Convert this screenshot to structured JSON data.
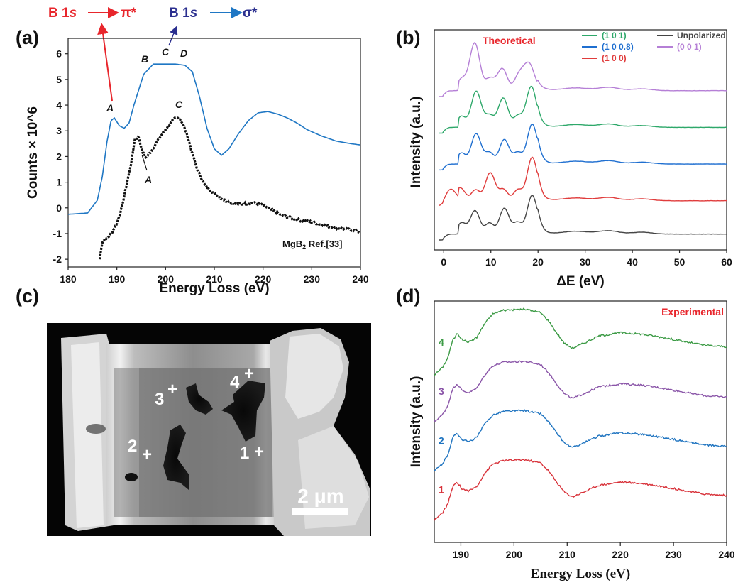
{
  "panel_labels": {
    "a": "(a)",
    "b": "(b)",
    "c": "(c)",
    "d": "(d)"
  },
  "chart_data": [
    {
      "id": "a",
      "type": "line",
      "xlabel": "Energy Loss (eV)",
      "ylabel": "Counts × 10^6",
      "xlim": [
        180,
        240
      ],
      "ylim": [
        -2.3,
        6.6
      ],
      "xticks": [
        180,
        190,
        200,
        210,
        220,
        230,
        240
      ],
      "yticks": [
        -2,
        -1,
        0,
        1,
        2,
        3,
        4,
        5,
        6
      ],
      "annotations": {
        "pi_label_b": "B 1",
        "pi_label_s": "s",
        "pi_label_target": "π*",
        "sigma_label_b": "B 1",
        "sigma_label_s": "s",
        "sigma_label_target": "σ*",
        "blue_A": "A",
        "blue_B": "B",
        "blue_C": "C",
        "blue_D": "D",
        "black_A": "A",
        "black_C": "C",
        "ref_main": "MgB",
        "ref_sub": "2",
        "ref_rest": " Ref.[33]"
      },
      "series": [
        {
          "color": "#1f77c4",
          "x": [
            180,
            184,
            186,
            187,
            188,
            188.8,
            189.5,
            190.5,
            191.5,
            192.5,
            193.5,
            194.5,
            195.5,
            196.5,
            197.5,
            198.5,
            200,
            202,
            204,
            205.5,
            207,
            208.5,
            210,
            211.5,
            213,
            215,
            217,
            219,
            221,
            223,
            225,
            227,
            229,
            232,
            235,
            238,
            240
          ],
          "y": [
            -0.25,
            -0.2,
            0.3,
            1.2,
            2.6,
            3.4,
            3.5,
            3.2,
            3.1,
            3.3,
            4.0,
            4.6,
            5.2,
            5.4,
            5.6,
            5.6,
            5.6,
            5.6,
            5.55,
            5.3,
            4.3,
            3.1,
            2.3,
            2.05,
            2.3,
            2.9,
            3.4,
            3.7,
            3.75,
            3.65,
            3.5,
            3.3,
            3.05,
            2.8,
            2.6,
            2.5,
            2.45
          ]
        },
        {
          "color": "#111111",
          "dashed": true,
          "x": [
            186.5,
            187,
            188,
            189,
            190,
            191,
            192,
            193,
            193.7,
            194.5,
            195.2,
            196,
            197,
            198,
            199,
            200,
            201,
            202,
            202.8,
            203.5,
            204.5,
            205.5,
            206.5,
            208,
            210,
            212,
            214,
            216,
            218,
            220,
            222,
            224,
            226,
            228,
            230,
            232,
            234,
            236,
            238,
            240
          ],
          "y": [
            -2.0,
            -1.3,
            -1.2,
            -0.95,
            -0.6,
            0.0,
            0.9,
            1.8,
            2.7,
            2.75,
            2.2,
            1.95,
            2.2,
            2.5,
            2.8,
            3.05,
            3.3,
            3.5,
            3.5,
            3.3,
            2.8,
            2.1,
            1.5,
            0.9,
            0.55,
            0.3,
            0.15,
            0.15,
            0.2,
            0.1,
            -0.1,
            -0.3,
            -0.4,
            -0.5,
            -0.55,
            -0.65,
            -0.75,
            -0.8,
            -0.85,
            -0.95
          ]
        }
      ]
    },
    {
      "id": "b",
      "type": "line",
      "xlabel": "ΔE (eV)",
      "ylabel": "Intensity (a.u.)",
      "title": "Theoretical",
      "xlim": [
        -2,
        60
      ],
      "xticks": [
        0,
        10,
        20,
        30,
        40,
        50,
        60
      ],
      "legend_placement": "top-right",
      "series": [
        {
          "name": "(0 0 1)",
          "color": "#b57fd6",
          "offset": 4.3,
          "peaks": [
            [
              6.5,
              1.6
            ],
            [
              12,
              0.55
            ],
            [
              17.5,
              0.95
            ]
          ]
        },
        {
          "name": "(1 0 1)",
          "color": "#2ea86a",
          "offset": 3.2,
          "peaks": [
            [
              7,
              1.1
            ],
            [
              12.5,
              0.8
            ],
            [
              18.5,
              1.3
            ]
          ]
        },
        {
          "name": "(1 0 0.8)",
          "color": "#1f6fd0",
          "offset": 2.1,
          "peaks": [
            [
              7,
              0.85
            ],
            [
              13,
              0.6
            ],
            [
              18.8,
              1.25
            ]
          ]
        },
        {
          "name": "(1 0 0)",
          "color": "#e03c3c",
          "offset": 1.0,
          "peaks": [
            [
              1.5,
              0.5
            ],
            [
              10,
              0.75
            ],
            [
              18.8,
              1.4
            ]
          ]
        },
        {
          "name": "Unpolarized",
          "color": "#444444",
          "offset": 0.0,
          "peaks": [
            [
              6.5,
              0.55
            ],
            [
              13,
              0.65
            ],
            [
              18.8,
              1.2
            ]
          ]
        }
      ]
    },
    {
      "id": "d",
      "type": "line",
      "xlabel": "Energy Loss (eV)",
      "ylabel": "Intensity (a.u.)",
      "title": "Experimental",
      "xlim": [
        185,
        240
      ],
      "xticks": [
        190,
        200,
        210,
        220,
        230,
        240
      ],
      "series": [
        {
          "name": "4",
          "color": "#3d9b46",
          "offset": 3.3
        },
        {
          "name": "3",
          "color": "#8a55a8",
          "offset": 2.2
        },
        {
          "name": "2",
          "color": "#1f74c0",
          "offset": 1.1
        },
        {
          "name": "1",
          "color": "#d8323a",
          "offset": 0.0
        }
      ]
    }
  ],
  "micrograph": {
    "scale_bar_label": "2 μm",
    "points": [
      "1",
      "2",
      "3",
      "4"
    ],
    "plus": "+"
  }
}
